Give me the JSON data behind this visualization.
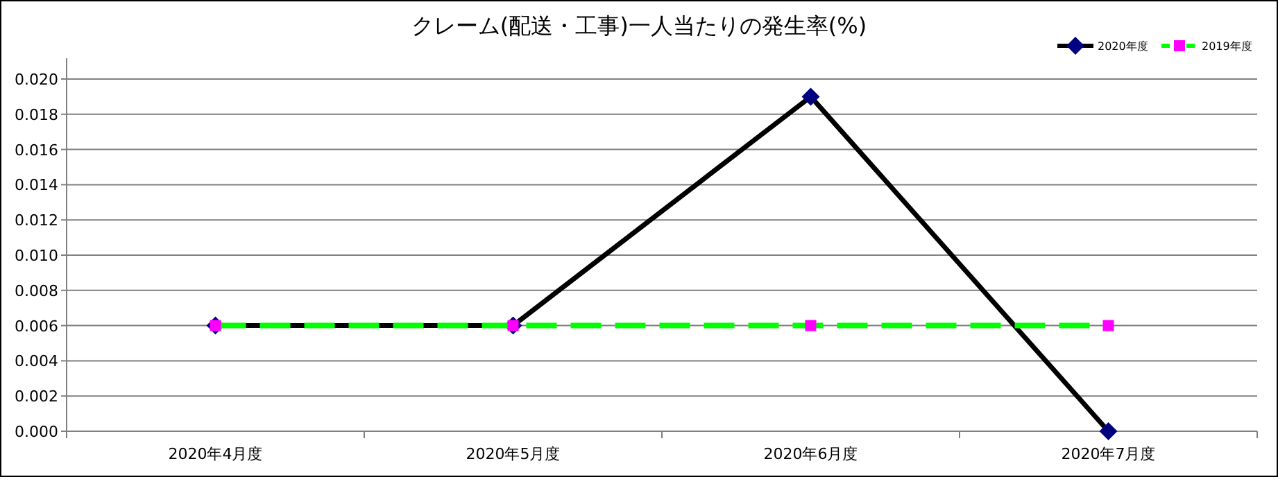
{
  "chart_data": {
    "type": "line",
    "title": "クレーム(配送・工事)一人当たりの発生率(%)",
    "categories": [
      "2020年4月度",
      "2020年5月度",
      "2020年6月度",
      "2020年7月度"
    ],
    "series": [
      {
        "name": "2020年度",
        "color": "#000000",
        "colors": [
          "#000080",
          "#000080",
          "#000080",
          "#000080"
        ],
        "values": [
          0.006,
          0.006,
          0.019,
          0.0
        ],
        "marker": "diamond",
        "line_style": "solid"
      },
      {
        "name": "2019年度",
        "color": "#00ff00",
        "colors": [
          "#ff00ff",
          "#ff00ff",
          "#ff00ff",
          "#ff00ff"
        ],
        "values": [
          0.006,
          0.006,
          0.006,
          0.006
        ],
        "marker": "square",
        "line_style": "dashed"
      }
    ],
    "ylim": [
      0,
      0.02
    ],
    "yticks": [
      {
        "value": 0,
        "label": "0.000"
      },
      {
        "value": 0.002,
        "label": "0.002"
      },
      {
        "value": 0.004,
        "label": "0.004"
      },
      {
        "value": 0.006,
        "label": "0.006"
      },
      {
        "value": 0.008,
        "label": "0.008"
      },
      {
        "value": 0.01,
        "label": "0.010"
      },
      {
        "value": 0.012,
        "label": "0.012"
      },
      {
        "value": 0.014,
        "label": "0.014"
      },
      {
        "value": 0.016,
        "label": "0.016"
      },
      {
        "value": 0.018,
        "label": "0.018"
      },
      {
        "value": 0.02,
        "label": "0.020"
      }
    ],
    "grid": "y",
    "legend": "top right"
  }
}
